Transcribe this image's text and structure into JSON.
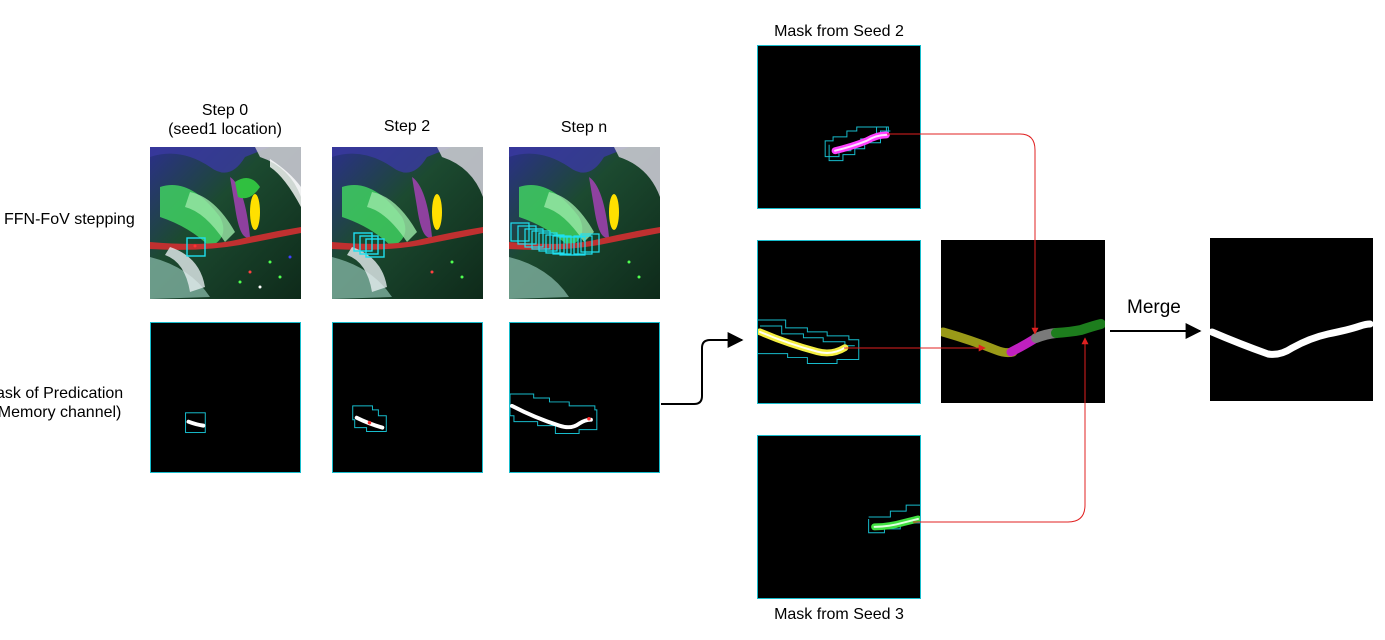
{
  "row_labels": {
    "ffn_fov": "FFN-FoV stepping",
    "mask_line1": "ask of Predication",
    "mask_line2": "Memory channel)"
  },
  "columns": {
    "step0_line1": "Step 0",
    "step0_line2": "(seed1 location)",
    "step2": "Step 2",
    "stepn": "Step n"
  },
  "seed_masks": {
    "seed2": "Mask from Seed 2",
    "seed3": "Mask from Seed 3"
  },
  "merge_label": "Merge",
  "colors": {
    "panel_border": "#17bccc",
    "arrow_red": "#e02020",
    "seg_olive": "#9a9a18",
    "seg_magenta": "#c020c0",
    "seg_gray": "#7a7a7a",
    "seg_green": "#1d7d1d",
    "seed2_mask": "#ff40ff",
    "seed1_mask": "#f4ee40",
    "seed3_mask": "#40e040"
  }
}
